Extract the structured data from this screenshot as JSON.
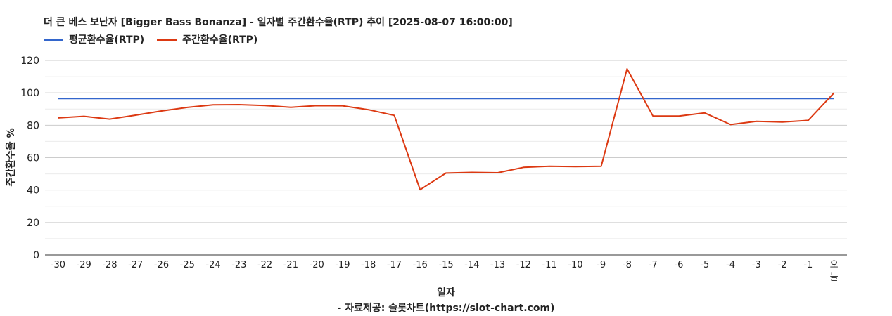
{
  "chart_data": {
    "type": "line",
    "title": "더 큰 베스 보난자 [Bigger Bass Bonanza] - 일자별 주간환수율(RTP) 추이 [2025-08-07 16:00:00]",
    "xlabel": "일자",
    "ylabel": "주간환수율 %",
    "source": "- 자료제공: 슬롯차트(https://slot-chart.com)",
    "ylim": [
      0,
      120
    ],
    "yticks": [
      0,
      20,
      40,
      60,
      80,
      100,
      120
    ],
    "grid": true,
    "legend_position": "top-left",
    "categories": [
      "-30",
      "-29",
      "-28",
      "-27",
      "-26",
      "-25",
      "-24",
      "-23",
      "-22",
      "-21",
      "-20",
      "-19",
      "-18",
      "-17",
      "-16",
      "-15",
      "-14",
      "-13",
      "-12",
      "-11",
      "-10",
      "-9",
      "-8",
      "-7",
      "-6",
      "-5",
      "-4",
      "-3",
      "-2",
      "-1",
      "오늘"
    ],
    "series": [
      {
        "name": "평균환수율(RTP)",
        "color": "#3366cc",
        "values": [
          96.5,
          96.5,
          96.5,
          96.5,
          96.5,
          96.5,
          96.5,
          96.5,
          96.5,
          96.5,
          96.5,
          96.5,
          96.5,
          96.5,
          96.5,
          96.5,
          96.5,
          96.5,
          96.5,
          96.5,
          96.5,
          96.5,
          96.5,
          96.5,
          96.5,
          96.5,
          96.5,
          96.5,
          96.5,
          96.5,
          96.5
        ]
      },
      {
        "name": "주간환수율(RTP)",
        "color": "#dc3912",
        "values": [
          84.5,
          85.5,
          83.8,
          86.2,
          88.8,
          91.0,
          92.6,
          92.7,
          92.2,
          91.1,
          92.1,
          92.0,
          89.6,
          86.1,
          40.2,
          50.5,
          50.9,
          50.7,
          54.0,
          54.7,
          54.5,
          54.7,
          114.8,
          85.7,
          85.7,
          87.6,
          80.4,
          82.4,
          82.0,
          83.0,
          100.0
        ]
      }
    ]
  }
}
